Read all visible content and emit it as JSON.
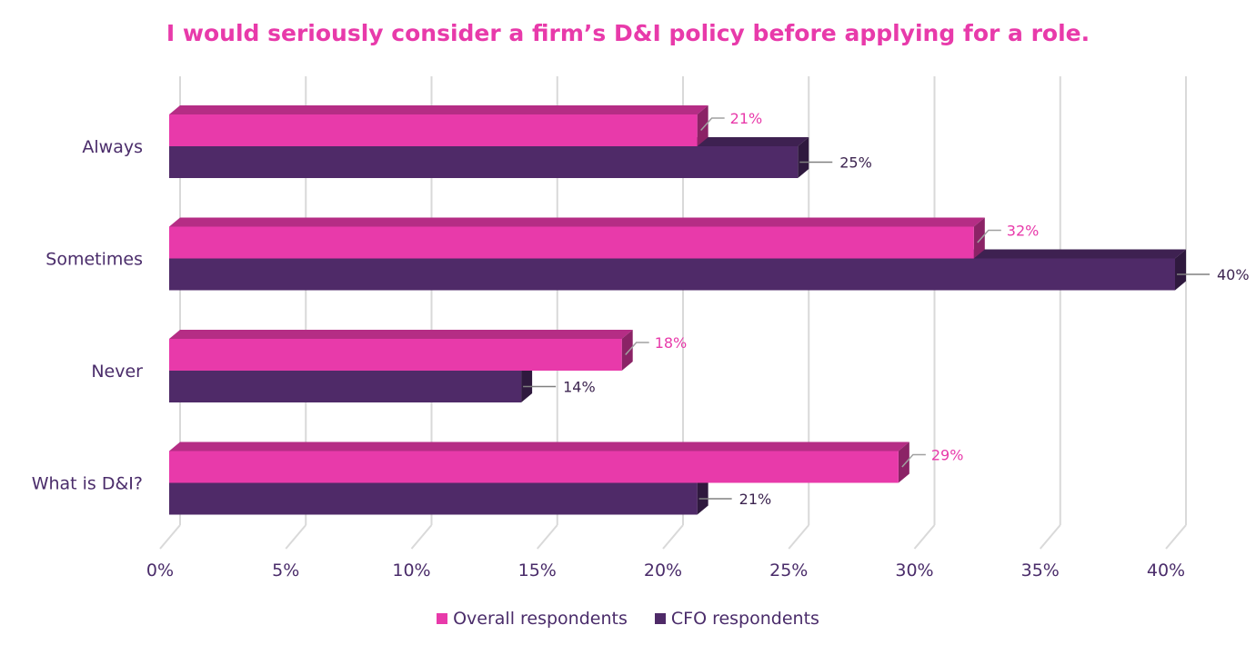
{
  "chart_data": {
    "type": "bar",
    "orientation": "horizontal",
    "title": "I would seriously consider a firm’s D&I policy before applying for a role.",
    "categories": [
      "Always",
      "Sometimes",
      "Never",
      "What is D&I?"
    ],
    "series": [
      {
        "name": "Overall respondents",
        "values": [
          21,
          32,
          18,
          29
        ],
        "labels": [
          "21%",
          "32%",
          "18%",
          "29%"
        ],
        "color": "#e83aaa"
      },
      {
        "name": "CFO respondents",
        "values": [
          25,
          40,
          14,
          21
        ],
        "labels": [
          "25%",
          "40%",
          "14%",
          "21%"
        ],
        "color": "#4f2a68"
      }
    ],
    "xlim": [
      0,
      40
    ],
    "xticks": [
      "0%",
      "5%",
      "10%",
      "15%",
      "20%",
      "25%",
      "30%",
      "35%",
      "40%"
    ],
    "grid": true,
    "legend_position": "bottom"
  }
}
